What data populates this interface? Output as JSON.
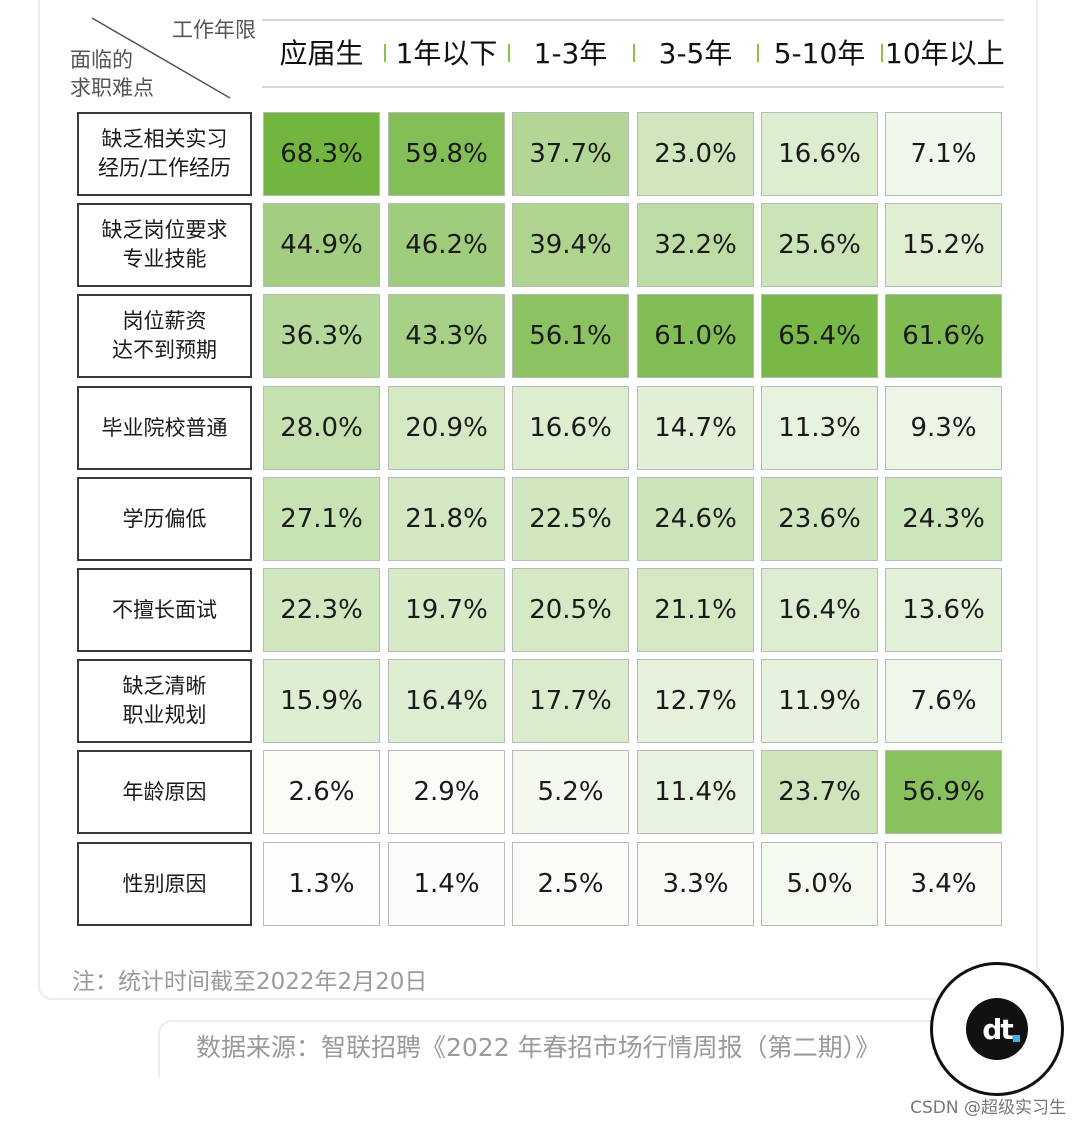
{
  "corner": {
    "top_label": "工作年限",
    "left_label": "面临的\n求职难点"
  },
  "chart_data": {
    "type": "heatmap",
    "columns": [
      "应届生",
      "1年以下",
      "1-3年",
      "3-5年",
      "5-10年",
      "10年以上"
    ],
    "rows": [
      {
        "label": "缺乏相关实习\n经历/工作经历",
        "values": [
          68.3,
          59.8,
          37.7,
          23.0,
          16.6,
          7.1
        ],
        "display": [
          "68.3%",
          "59.8%",
          "37.7%",
          "23.0%",
          "16.6%",
          "7.1%"
        ]
      },
      {
        "label": "缺乏岗位要求\n专业技能",
        "values": [
          44.9,
          46.2,
          39.4,
          32.2,
          25.6,
          15.2
        ],
        "display": [
          "44.9%",
          "46.2%",
          "39.4%",
          "32.2%",
          "25.6%",
          "15.2%"
        ]
      },
      {
        "label": "岗位薪资\n达不到预期",
        "values": [
          36.3,
          43.3,
          56.1,
          61.0,
          65.4,
          61.6
        ],
        "display": [
          "36.3%",
          "43.3%",
          "56.1%",
          "61.0%",
          "65.4%",
          "61.6%"
        ]
      },
      {
        "label": "毕业院校普通",
        "values": [
          28.0,
          20.9,
          16.6,
          14.7,
          11.3,
          9.3
        ],
        "display": [
          "28.0%",
          "20.9%",
          "16.6%",
          "14.7%",
          "11.3%",
          "9.3%"
        ]
      },
      {
        "label": "学历偏低",
        "values": [
          27.1,
          21.8,
          22.5,
          24.6,
          23.6,
          24.3
        ],
        "display": [
          "27.1%",
          "21.8%",
          "22.5%",
          "24.6%",
          "23.6%",
          "24.3%"
        ]
      },
      {
        "label": "不擅长面试",
        "values": [
          22.3,
          19.7,
          20.5,
          21.1,
          16.4,
          13.6
        ],
        "display": [
          "22.3%",
          "19.7%",
          "20.5%",
          "21.1%",
          "16.4%",
          "13.6%"
        ]
      },
      {
        "label": "缺乏清晰\n职业规划",
        "values": [
          15.9,
          16.4,
          17.7,
          12.7,
          11.9,
          7.6
        ],
        "display": [
          "15.9%",
          "16.4%",
          "17.7%",
          "12.7%",
          "11.9%",
          "7.6%"
        ]
      },
      {
        "label": "年龄原因",
        "values": [
          2.6,
          2.9,
          5.2,
          11.4,
          23.7,
          56.9
        ],
        "display": [
          "2.6%",
          "2.9%",
          "5.2%",
          "11.4%",
          "23.7%",
          "56.9%"
        ]
      },
      {
        "label": "性别原因",
        "values": [
          1.3,
          1.4,
          2.5,
          3.3,
          5.0,
          3.4
        ],
        "display": [
          "1.3%",
          "1.4%",
          "2.5%",
          "3.3%",
          "5.0%",
          "3.4%"
        ]
      }
    ],
    "color_scale": {
      "low": "#ffffff",
      "high": "#6fb33a"
    }
  },
  "note": "注：统计时间截至2022年2月20日",
  "source": "数据来源：智联招聘《2022 年春招市场行情周报（第二期）》",
  "logo": {
    "text": "dt",
    "accent": "#3bb3e6"
  },
  "credit": "CSDN @超级实习生"
}
